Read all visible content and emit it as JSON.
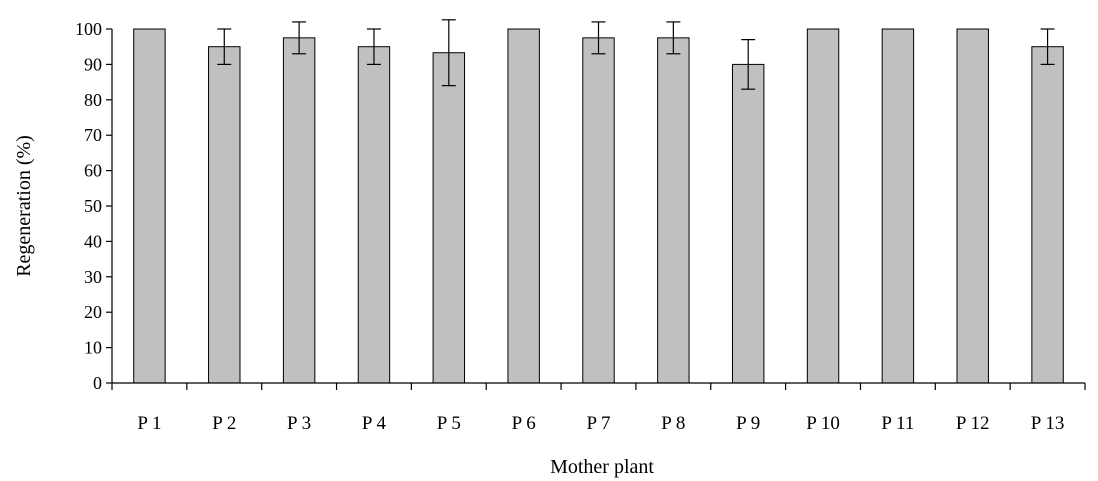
{
  "chart_data": {
    "type": "bar",
    "title": "",
    "xlabel": "Mother plant",
    "ylabel": "Regeneration (%)",
    "ylim": [
      0,
      100
    ],
    "yticks": [
      0,
      10,
      20,
      30,
      40,
      50,
      60,
      70,
      80,
      90,
      100
    ],
    "grid": false,
    "legend": "none",
    "bar_color": "#c0c0c0",
    "categories": [
      "P 1",
      "P 2",
      "P 3",
      "P 4",
      "P 5",
      "P 6",
      "P 7",
      "P 8",
      "P 9",
      "P 10",
      "P 11",
      "P 12",
      "P 13"
    ],
    "values": [
      100,
      95,
      97.5,
      95,
      93.3,
      100,
      97.5,
      97.5,
      90,
      100,
      100,
      100,
      95
    ],
    "error": [
      0,
      5,
      4.5,
      5,
      9.3,
      0,
      4.5,
      4.5,
      7,
      0,
      0,
      0,
      5
    ]
  }
}
